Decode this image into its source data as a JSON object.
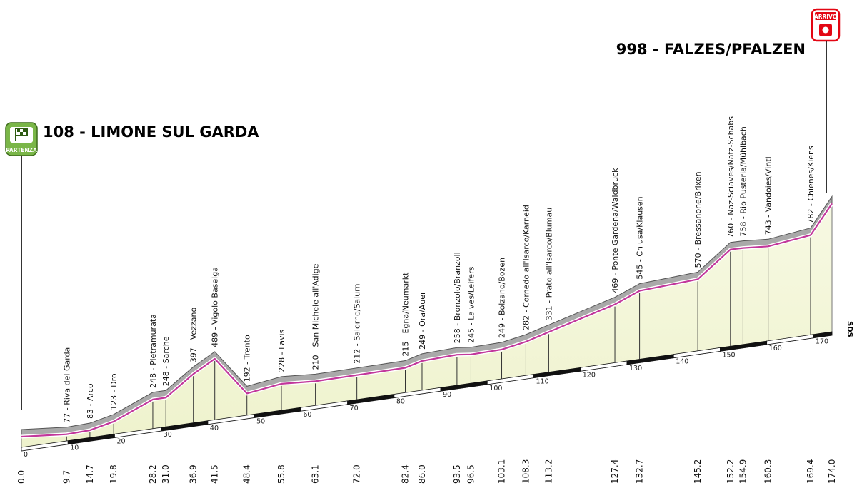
{
  "chart_data": {
    "type": "area",
    "start": {
      "label": "108 - LIMONE SUL GARDA",
      "badge": "PARTENZA"
    },
    "finish": {
      "label": "998 - FALZES/PFALZEN",
      "badge": "ARRIVO"
    },
    "side_label": "SDS",
    "x_axis": {
      "min": 0,
      "max": 174,
      "unit": "km",
      "ticks": [
        0,
        10,
        20,
        30,
        40,
        50,
        60,
        70,
        80,
        90,
        100,
        110,
        120,
        130,
        140,
        150,
        160,
        170
      ]
    },
    "y_range_m": [
      0,
      1000
    ],
    "points": [
      {
        "km": 0.0,
        "alt": 108,
        "name": "",
        "dist": "0.0"
      },
      {
        "km": 9.7,
        "alt": 77,
        "name": "77 - Riva del Garda",
        "dist": "9.7"
      },
      {
        "km": 14.7,
        "alt": 83,
        "name": "83 - Arco",
        "dist": "14.7"
      },
      {
        "km": 19.8,
        "alt": 123,
        "name": "123 - Dro",
        "dist": "19.8"
      },
      {
        "km": 28.2,
        "alt": 248,
        "name": "248 - Pietramurata",
        "dist": "28.2"
      },
      {
        "km": 31.0,
        "alt": 248,
        "name": "248 - Sarche",
        "dist": "31.0"
      },
      {
        "km": 36.9,
        "alt": 397,
        "name": "397 - Vezzano",
        "dist": "36.9"
      },
      {
        "km": 41.5,
        "alt": 489,
        "name": "489 - Vigolo Baselga",
        "dist": "41.5"
      },
      {
        "km": 48.4,
        "alt": 192,
        "name": "192 - Trento",
        "dist": "48.4"
      },
      {
        "km": 55.8,
        "alt": 228,
        "name": "228 - Lavis",
        "dist": "55.8"
      },
      {
        "km": 63.1,
        "alt": 210,
        "name": "210 - San Michele all'Adige",
        "dist": "63.1"
      },
      {
        "km": 72.0,
        "alt": 212,
        "name": "212 - Salorno/Salurn",
        "dist": "72.0"
      },
      {
        "km": 82.4,
        "alt": 215,
        "name": "215 - Egna/Neumarkt",
        "dist": "82.4"
      },
      {
        "km": 86.0,
        "alt": 249,
        "name": "249 - Ora/Auer",
        "dist": "86.0"
      },
      {
        "km": 93.5,
        "alt": 258,
        "name": "258 - Bronzolo/Branzoll",
        "dist": "93.5"
      },
      {
        "km": 96.5,
        "alt": 245,
        "name": "245 - Laives/Leifers",
        "dist": "96.5"
      },
      {
        "km": 103.1,
        "alt": 249,
        "name": "249 - Bolzano/Bozen",
        "dist": "103.1"
      },
      {
        "km": 108.3,
        "alt": 282,
        "name": "282 - Cornedo all'Isarco/Karneid",
        "dist": "108.3"
      },
      {
        "km": 113.2,
        "alt": 331,
        "name": "331 - Prato all'Isarco/Blumau",
        "dist": "113.2"
      },
      {
        "km": 127.4,
        "alt": 469,
        "name": "469 - Ponte Gardena/Waidbruck",
        "dist": "127.4"
      },
      {
        "km": 132.7,
        "alt": 545,
        "name": "545 - Chiusa/Klausen",
        "dist": "132.7"
      },
      {
        "km": 145.2,
        "alt": 570,
        "name": "570 - Bressanone/Brixen",
        "dist": "145.2"
      },
      {
        "km": 152.2,
        "alt": 760,
        "name": "760 - Naz-Sciaves/Natz-Schabs",
        "dist": "152.2"
      },
      {
        "km": 154.9,
        "alt": 758,
        "name": "758 - Rio Pusteria/Mühlbach",
        "dist": "154.9"
      },
      {
        "km": 160.3,
        "alt": 743,
        "name": "743 - Vandoies/Vintl",
        "dist": "160.3"
      },
      {
        "km": 169.4,
        "alt": 782,
        "name": "782 - Chienes/Kiens",
        "dist": "169.4"
      },
      {
        "km": 174.0,
        "alt": 998,
        "name": "",
        "dist": "174.0"
      }
    ],
    "colors": {
      "profile_fill": "#f4f7dc",
      "profile_ridge": "#8a8a8a",
      "road_line": "#c2379b",
      "badge_start": "#7ab648",
      "badge_finish": "#e30613"
    }
  }
}
